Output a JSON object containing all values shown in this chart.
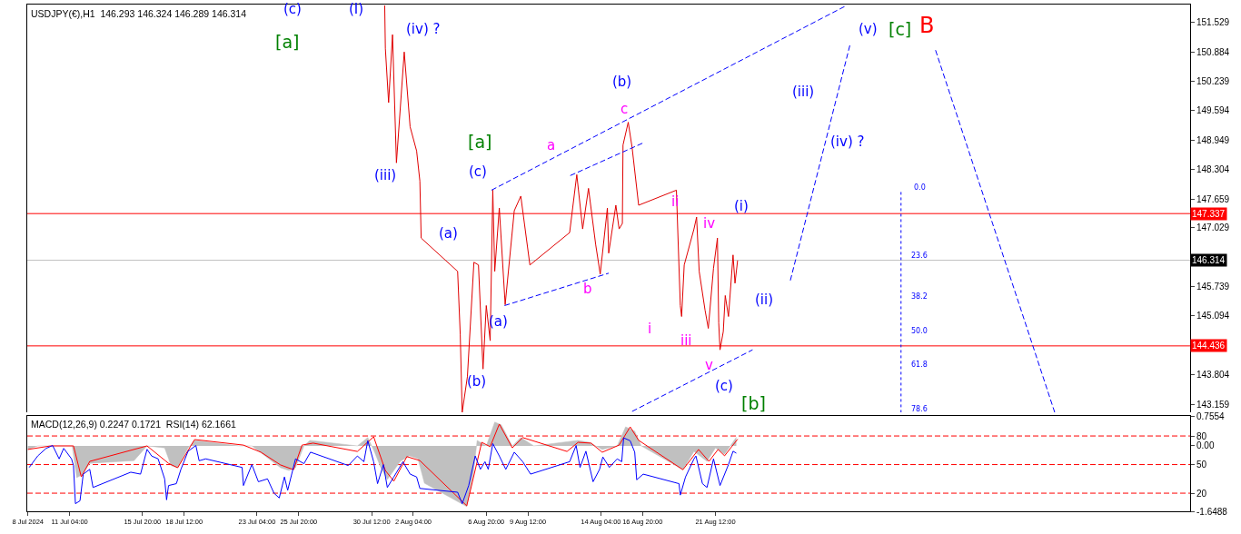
{
  "chart_data": [
    {
      "type": "line",
      "title": "USDJPY(€),H1  146.293 146.324 146.289 146.314",
      "tick_labels": "y",
      "marker": "none",
      "xlim": [
        "2024-07-08T11:00",
        "2024-09-20T21:00"
      ],
      "ylim": [
        142.98,
        151.92
      ],
      "yticks": [
        151.529,
        150.884,
        150.239,
        149.594,
        148.949,
        148.304,
        147.659,
        147.029,
        145.739,
        145.094,
        143.804,
        143.159
      ],
      "series": [
        {
          "color": "#e00000",
          "line_style": "solid",
          "x": [
            "2024-07-31T08:00",
            "2024-07-31T09:00",
            "2024-07-31T14:00",
            "2024-07-31T20:00",
            "2024-08-01T02:00",
            "2024-08-01T14:00",
            "2024-08-01T23:00",
            "2024-08-02T09:00",
            "2024-08-02T14:00",
            "2024-08-02T16:00",
            "2024-08-05T00:00",
            "2024-08-05T04:00",
            "2024-08-05T07:00",
            "2024-08-05T15:00",
            "2024-08-06T01:00",
            "2024-08-06T08:00",
            "2024-08-06T15:00",
            "2024-08-06T20:00",
            "2024-08-07T02:00",
            "2024-08-07T06:00",
            "2024-08-07T09:00",
            "2024-08-07T16:00",
            "2024-08-08T01:00",
            "2024-08-08T15:00",
            "2024-08-09T01:00",
            "2024-08-09T15:00",
            "2024-08-12T04:00",
            "2024-08-12T15:00",
            "2024-08-13T00:00",
            "2024-08-13T09:00",
            "2024-08-13T20:00",
            "2024-08-14T03:00",
            "2024-08-14T14:00",
            "2024-08-14T16:00",
            "2024-08-15T03:00",
            "2024-08-15T08:00",
            "2024-08-15T13:00",
            "2024-08-15T14:00",
            "2024-08-15T22:00",
            "2024-08-16T04:00",
            "2024-08-16T14:00",
            "2024-08-19T00:00",
            "2024-08-19T06:00",
            "2024-08-19T08:00",
            "2024-08-19T12:00",
            "2024-08-20T03:00",
            "2024-08-20T07:00",
            "2024-08-20T11:00",
            "2024-08-20T20:00",
            "2024-08-21T01:00",
            "2024-08-21T09:00",
            "2024-08-21T15:00",
            "2024-08-21T17:00",
            "2024-08-21T19:00",
            "2024-08-22T00:00",
            "2024-08-22T03:00",
            "2024-08-22T08:00",
            "2024-08-22T15:00",
            "2024-08-22T18:00",
            "2024-08-22T22:00"
          ],
          "values": [
            151.9,
            150.96,
            149.77,
            151.26,
            148.45,
            150.88,
            149.24,
            148.71,
            148.05,
            146.8,
            146.07,
            144.69,
            142.98,
            143.76,
            146.27,
            146.21,
            143.93,
            145.32,
            144.55,
            147.85,
            146.07,
            147.46,
            145.34,
            147.4,
            147.72,
            146.21,
            146.92,
            148.19,
            147.0,
            147.89,
            146.66,
            146.01,
            147.46,
            146.47,
            147.52,
            147.0,
            147.12,
            148.84,
            149.34,
            148.78,
            147.52,
            147.85,
            145.32,
            145.08,
            146.21,
            147.0,
            147.26,
            146.07,
            145.22,
            144.82,
            146.14,
            146.8,
            144.94,
            144.35,
            144.75,
            145.54,
            145.08,
            146.43,
            145.81,
            146.31
          ]
        },
        {
          "color": "#0000ff",
          "line_style": "dashed",
          "x": [
            "2024-08-07T04:00",
            "2024-08-29T20:00"
          ],
          "values": [
            147.85,
            151.89
          ]
        },
        {
          "color": "#0000ff",
          "line_style": "dashed",
          "x": [
            "2024-08-08T00:00",
            "2024-08-14T16:00"
          ],
          "values": [
            145.32,
            146.03
          ]
        },
        {
          "color": "#0000ff",
          "line_style": "dashed",
          "x": [
            "2024-08-12T05:00",
            "2024-08-16T23:00"
          ],
          "values": [
            148.17,
            148.9
          ]
        },
        {
          "color": "#0000ff",
          "line_style": "dashed",
          "x": [
            "2024-08-16T04:00",
            "2024-08-23T21:00"
          ],
          "values": [
            143.0,
            144.35
          ]
        },
        {
          "color": "#0000ff",
          "line_style": "dashed",
          "x": [
            "2024-08-26T07:00",
            "2024-08-30T03:00",
            "2024-08-30T04:00",
            "2024-09-04T14:00",
            "2024-09-12T05:00"
          ],
          "values": [
            145.87,
            151.06,
            null,
            150.92,
            142.98
          ]
        },
        {
          "color": "#0000ff",
          "line_style": "dotted",
          "x": [
            "2024-09-02T09:00",
            "2024-09-02T09:00"
          ],
          "values": [
            147.81,
            142.98
          ]
        }
      ],
      "ref_lines": [
        {
          "axis": "y",
          "value": 147.337,
          "label": "147.337",
          "color": "#ff0000",
          "line_style": "solid"
        },
        {
          "axis": "y",
          "value": 146.314,
          "label": "146.314",
          "color": "#c0c0c0",
          "line_style": "solid"
        },
        {
          "axis": "y",
          "value": 144.436,
          "label": "144.436",
          "color": "#ff0000",
          "line_style": "solid"
        }
      ],
      "annotations": [
        "(c)",
        "[a]",
        "(I)",
        "(iv) ?",
        "(iii)",
        "(a)",
        "(b)",
        "[a]",
        "(c)",
        "(a)",
        "a",
        "b",
        "(b)",
        "c",
        "ii",
        "i",
        "iv",
        "iii",
        "v",
        "(c)",
        "[b]",
        "(i)",
        "(ii)",
        "(iii)",
        "(iv) ?",
        "(v)",
        "[c]",
        "B",
        "0.0",
        "23.6",
        "38.2",
        "50.0",
        "61.8",
        "78.6"
      ]
    },
    {
      "type": "line",
      "title": "MACD(12,26,9) 0.2247 0.1721  RSI(14) 62.1661",
      "marker": "none",
      "xlim": [
        "2024-07-08T11:00",
        "2024-09-20T21:00"
      ],
      "xticks": [
        {
          "value": "2024-07-08T12:00",
          "label": "8 Jul 2024"
        },
        {
          "value": "2024-07-11T04:00",
          "label": "11 Jul 04:00"
        },
        {
          "value": "2024-07-15T20:00",
          "label": "15 Jul 20:00"
        },
        {
          "value": "2024-07-18T12:00",
          "label": "18 Jul 12:00"
        },
        {
          "value": "2024-07-23T04:00",
          "label": "23 Jul 04:00"
        },
        {
          "value": "2024-07-25T20:00",
          "label": "25 Jul 20:00"
        },
        {
          "value": "2024-07-30T12:00",
          "label": "30 Jul 12:00"
        },
        {
          "value": "2024-08-02T04:00",
          "label": "2 Aug 04:00"
        },
        {
          "value": "2024-08-06T20:00",
          "label": "6 Aug 20:00"
        },
        {
          "value": "2024-08-09T12:00",
          "label": "9 Aug 12:00"
        },
        {
          "value": "2024-08-14T04:00",
          "label": "14 Aug 04:00"
        },
        {
          "value": "2024-08-16T20:00",
          "label": "16 Aug 20:00"
        },
        {
          "value": "2024-08-21T12:00",
          "label": "21 Aug 12:00"
        }
      ],
      "ylim": [
        -1.6488,
        0.7554
      ],
      "yticks": [
        0.7554,
        {
          "value": 0,
          "label": "0.00"
        },
        -1.6488
      ],
      "y2lim": [
        1,
        101
      ],
      "y2ticks": [
        80,
        50,
        20
      ],
      "series": [
        {
          "type": "area",
          "color": "#c0c0c0",
          "x": [
            "2024-07-08T12:00",
            "2024-07-09T03:00",
            "2024-07-10T02:00",
            "2024-07-11T08:00",
            "2024-07-11T15:00",
            "2024-07-11T23:00",
            "2024-07-12T11:00",
            "2024-07-15T07:00",
            "2024-07-16T03:00",
            "2024-07-17T06:00",
            "2024-07-17T16:00",
            "2024-07-18T02:00",
            "2024-07-18T18:00",
            "2024-07-19T04:00",
            "2024-07-22T00:00",
            "2024-07-22T20:00",
            "2024-07-23T16:00",
            "2024-07-24T16:00",
            "2024-07-25T05:00",
            "2024-07-25T15:00",
            "2024-07-26T04:00",
            "2024-07-26T13:00",
            "2024-07-29T14:00",
            "2024-07-30T06:00",
            "2024-07-30T16:00",
            "2024-07-31T02:00",
            "2024-07-31T12:00",
            "2024-08-01T08:00",
            "2024-08-01T22:00",
            "2024-08-02T11:00",
            "2024-08-02T21:00",
            "2024-08-05T14:00",
            "2024-08-06T00:00",
            "2024-08-06T06:00",
            "2024-08-06T20:00",
            "2024-08-07T09:00",
            "2024-08-07T19:00",
            "2024-08-08T12:00",
            "2024-08-09T01:00",
            "2024-08-09T21:00",
            "2024-08-12T17:00",
            "2024-08-13T10:00",
            "2024-08-14T06:00",
            "2024-08-15T05:00",
            "2024-08-15T18:00",
            "2024-08-16T08:00",
            "2024-08-16T18:00",
            "2024-08-19T10:00",
            "2024-08-20T03:00",
            "2024-08-20T23:00",
            "2024-08-21T12:00",
            "2024-08-22T02:00",
            "2024-08-22T20:00"
          ],
          "values": [
            -0.09,
            0,
            0,
            0,
            -0.8,
            -0.73,
            -0.44,
            -0.37,
            0,
            -0.05,
            -0.5,
            -0.55,
            -0.05,
            0.14,
            0,
            0,
            -0.25,
            -0.55,
            -0.62,
            -0.55,
            0,
            0.14,
            0,
            0.21,
            -0.14,
            -0.55,
            -0.85,
            -0.39,
            -0.25,
            -0.32,
            -0.94,
            -1.53,
            -0.71,
            0.14,
            0,
            0.6,
            0.53,
            0,
            0.21,
            0,
            0.14,
            0.09,
            -0.09,
            0,
            0.48,
            0.37,
            0,
            -0.6,
            -0.14,
            -0.39,
            -0.05,
            -0.21,
            0.22
          ]
        },
        {
          "color": "#ff0000",
          "line_style": "solid",
          "x": [
            "2024-07-08T12:00",
            "2024-07-09T23:00",
            "2024-07-11T10:00",
            "2024-07-11T22:00",
            "2024-07-12T11:00",
            "2024-07-16T03:00",
            "2024-07-17T12:00",
            "2024-07-18T02:00",
            "2024-07-19T04:00",
            "2024-07-22T07:00",
            "2024-07-23T10:00",
            "2024-07-24T16:00",
            "2024-07-25T12:00",
            "2024-07-26T01:00",
            "2024-07-26T18:00",
            "2024-07-29T14:00",
            "2024-07-30T15:00",
            "2024-07-31T09:00",
            "2024-07-31T22:00",
            "2024-08-01T18:00",
            "2024-08-02T14:00",
            "2024-08-05T14:00",
            "2024-08-06T13:00",
            "2024-08-07T02:00",
            "2024-08-07T16:00",
            "2024-08-08T12:00",
            "2024-08-09T04:00",
            "2024-08-12T00:00",
            "2024-08-12T17:00",
            "2024-08-13T13:00",
            "2024-08-14T06:00",
            "2024-08-15T08:00",
            "2024-08-16T01:00",
            "2024-08-16T14:00",
            "2024-08-19T10:00",
            "2024-08-20T10:00",
            "2024-08-21T02:00",
            "2024-08-21T16:00",
            "2024-08-22T02:00",
            "2024-08-22T22:00"
          ],
          "values": [
            -0.09,
            0,
            0,
            -0.78,
            -0.39,
            0,
            -0.44,
            -0.55,
            0.16,
            0.02,
            -0.16,
            -0.48,
            -0.6,
            0.02,
            0.07,
            -0.14,
            0.23,
            -0.62,
            -0.89,
            -0.27,
            -0.37,
            -1.51,
            0.09,
            -0.02,
            0.55,
            -0.05,
            0.21,
            -0.14,
            0.09,
            0.07,
            -0.16,
            0.02,
            0.48,
            0.14,
            -0.6,
            -0.09,
            -0.39,
            -0.09,
            -0.25,
            0.17
          ]
        },
        {
          "color": "#0000ff",
          "line_style": "solid",
          "axis": "y2",
          "x": [
            "2024-07-08T14:00",
            "2024-07-09T03:00",
            "2024-07-09T16:00",
            "2024-07-10T02:00",
            "2024-07-10T12:00",
            "2024-07-10T19:00",
            "2024-07-11T07:00",
            "2024-07-11T10:00",
            "2024-07-11T13:00",
            "2024-07-11T20:00",
            "2024-07-12T01:00",
            "2024-07-12T11:00",
            "2024-07-12T16:00",
            "2024-07-15T02:00",
            "2024-07-15T17:00",
            "2024-07-16T03:00",
            "2024-07-16T10:00",
            "2024-07-16T20:00",
            "2024-07-17T06:00",
            "2024-07-17T09:00",
            "2024-07-17T12:00",
            "2024-07-18T00:00",
            "2024-07-18T07:00",
            "2024-07-18T18:00",
            "2024-07-19T06:00",
            "2024-07-19T11:00",
            "2024-07-19T21:00",
            "2024-07-22T05:00",
            "2024-07-22T07:00",
            "2024-07-22T20:00",
            "2024-07-23T06:00",
            "2024-07-23T20:00",
            "2024-07-24T06:00",
            "2024-07-24T14:00",
            "2024-07-24T22:00",
            "2024-07-25T03:00",
            "2024-07-25T15:00",
            "2024-07-26T04:00",
            "2024-07-26T14:00",
            "2024-07-29T00:00",
            "2024-07-29T14:00",
            "2024-07-30T00:00",
            "2024-07-30T06:00",
            "2024-07-30T15:00",
            "2024-07-30T21:00",
            "2024-07-31T06:00",
            "2024-07-31T12:00",
            "2024-07-31T22:00",
            "2024-08-01T12:00",
            "2024-08-01T23:00",
            "2024-08-02T09:00",
            "2024-08-02T14:00",
            "2024-08-05T00:00",
            "2024-08-05T07:00",
            "2024-08-05T17:00",
            "2024-08-06T03:00",
            "2024-08-06T11:00",
            "2024-08-06T18:00",
            "2024-08-06T23:00",
            "2024-08-07T06:00",
            "2024-08-07T16:00",
            "2024-08-08T02:00",
            "2024-08-08T15:00",
            "2024-08-09T04:00",
            "2024-08-09T16:00",
            "2024-08-12T04:00",
            "2024-08-12T14:00",
            "2024-08-12T20:00",
            "2024-08-13T05:00",
            "2024-08-13T16:00",
            "2024-08-14T02:00",
            "2024-08-14T07:00",
            "2024-08-14T17:00",
            "2024-08-15T05:00",
            "2024-08-15T12:00",
            "2024-08-15T15:00",
            "2024-08-16T01:00",
            "2024-08-16T08:00",
            "2024-08-16T11:00",
            "2024-08-16T21:00",
            "2024-08-19T04:00",
            "2024-08-19T06:00",
            "2024-08-19T14:00",
            "2024-08-20T03:00",
            "2024-08-20T06:00",
            "2024-08-20T16:00",
            "2024-08-20T23:00",
            "2024-08-21T09:00",
            "2024-08-21T19:00",
            "2024-08-22T08:00",
            "2024-08-22T15:00",
            "2024-08-22T20:00"
          ],
          "values": [
            47,
            59,
            67,
            70,
            56,
            67,
            56,
            49,
            9,
            12,
            40,
            45,
            26,
            42,
            40,
            66,
            59,
            56,
            35,
            13,
            28,
            30,
            45,
            64,
            70,
            54,
            56,
            47,
            28,
            50,
            32,
            35,
            20,
            15,
            37,
            23,
            56,
            51,
            63,
            49,
            59,
            53,
            75,
            53,
            30,
            50,
            26,
            37,
            53,
            40,
            37,
            25,
            21,
            9,
            28,
            59,
            45,
            53,
            45,
            72,
            59,
            45,
            63,
            53,
            40,
            53,
            70,
            47,
            64,
            32,
            45,
            58,
            47,
            56,
            53,
            78,
            75,
            63,
            34,
            40,
            30,
            18,
            37,
            56,
            59,
            30,
            26,
            56,
            28,
            50,
            64,
            62
          ]
        }
      ],
      "ref_lines": [
        {
          "axis": "y2",
          "value": 80,
          "color": "#ff0000",
          "line_style": "dashed"
        },
        {
          "axis": "y2",
          "value": 50,
          "color": "#ff0000",
          "line_style": "dashed"
        },
        {
          "axis": "y2",
          "value": 20,
          "color": "#ff0000",
          "line_style": "dashed"
        }
      ]
    }
  ]
}
